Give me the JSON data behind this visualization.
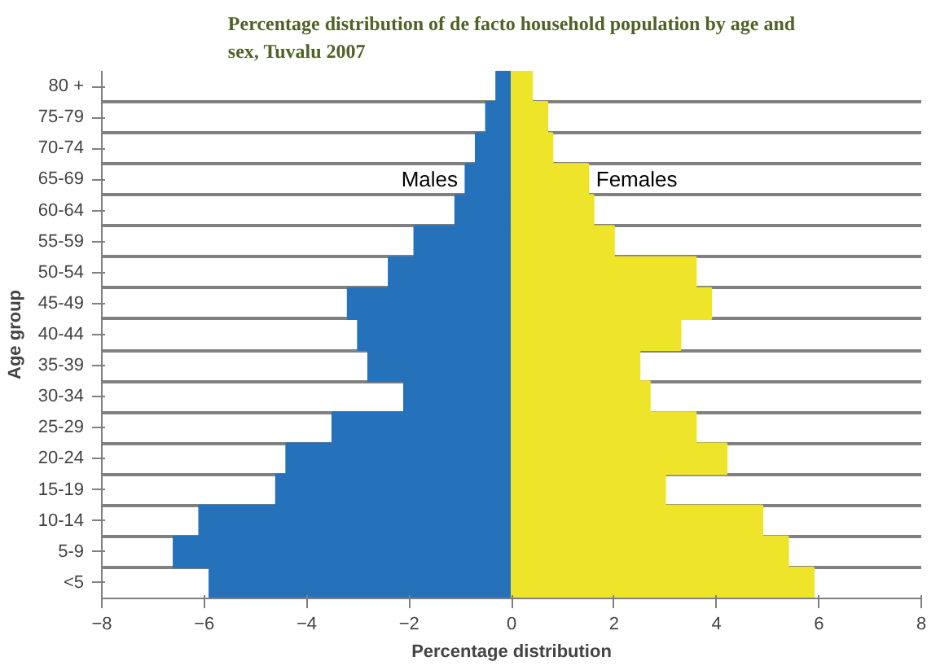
{
  "chart_data": {
    "type": "bar",
    "orientation": "horizontal",
    "stacked": true,
    "title": "Percentage distribution of de facto household population by age and sex, Tuvalu 2007",
    "xlabel": "Percentage distribution",
    "ylabel": "Age group",
    "categories": [
      "80 +",
      "75-79",
      "70-74",
      "65-69",
      "60-64",
      "55-59",
      "50-54",
      "45-49",
      "40-44",
      "35-39",
      "30-34",
      "25-29",
      "20-24",
      "15-19",
      "10-14",
      "5-9",
      "<5"
    ],
    "series": [
      {
        "name": "Males",
        "color": "#2672ba",
        "values": [
          -0.3,
          -0.5,
          -0.7,
          -0.9,
          -1.1,
          -1.9,
          -2.4,
          -3.2,
          -3.0,
          -2.8,
          -2.1,
          -3.5,
          -4.4,
          -4.6,
          -6.1,
          -6.6,
          -5.9
        ]
      },
      {
        "name": "Females",
        "color": "#eee52a",
        "values": [
          0.4,
          0.7,
          0.8,
          1.5,
          1.6,
          2.0,
          3.6,
          3.9,
          3.3,
          2.5,
          2.7,
          3.6,
          4.2,
          3.0,
          4.9,
          5.4,
          5.9
        ]
      }
    ],
    "xlim": [
      -8,
      8
    ],
    "xticks": [
      -8,
      -6,
      -4,
      -2,
      0,
      2,
      4,
      6,
      8
    ],
    "grid": "y",
    "legend": false
  }
}
